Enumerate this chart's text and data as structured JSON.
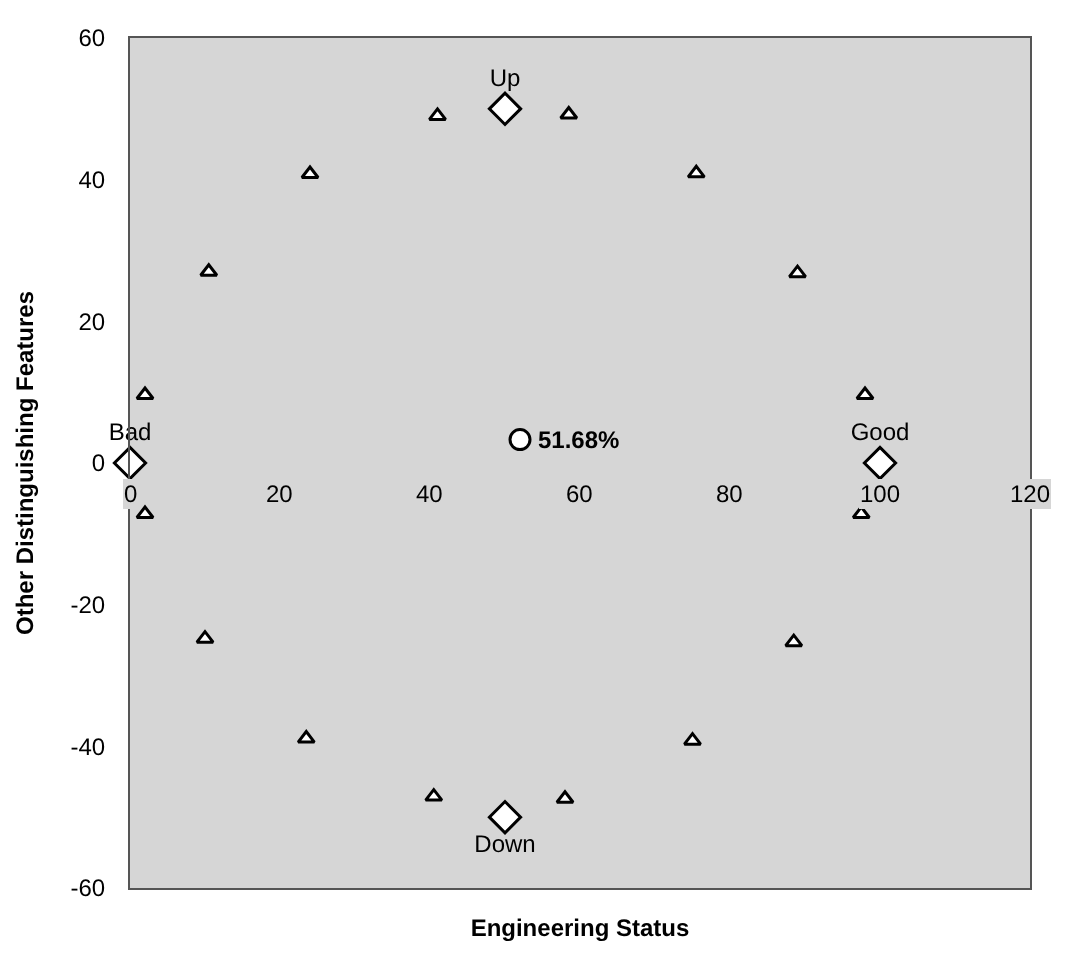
{
  "chart_data": {
    "type": "scatter",
    "xlabel": "Engineering Status",
    "ylabel": "Other Distinguishing Features",
    "xlim": [
      0,
      120
    ],
    "xticks": [
      0,
      20,
      40,
      60,
      80,
      100,
      120
    ],
    "ylim": [
      -60,
      60
    ],
    "yticks": [
      -60,
      -40,
      -20,
      0,
      20,
      40,
      60
    ],
    "grid": false,
    "annotations": [
      {
        "text": "51.68%",
        "x": 52,
        "y": 3.3
      }
    ],
    "series": [
      {
        "marker": "triangle",
        "color": "#000000",
        "x": [
          2,
          10.5,
          24,
          41,
          58.5,
          75.5,
          89,
          98,
          97.5,
          88.5,
          75,
          58,
          40.5,
          23.5,
          10,
          2
        ],
        "values": [
          9.6,
          27,
          40.8,
          49,
          49.2,
          40.9,
          26.8,
          9.6,
          -7.2,
          -25.3,
          -39.2,
          -47.4,
          -47.1,
          -38.9,
          -24.8,
          -7.2
        ]
      },
      {
        "marker": "diamond",
        "color": "#000000",
        "x": [
          0,
          50,
          100,
          50
        ],
        "values": [
          0,
          50,
          0,
          -50
        ],
        "value_labels": [
          "Bad",
          "Up",
          "Good",
          "Down"
        ]
      },
      {
        "marker": "circle",
        "color": "#000000",
        "x": [
          52
        ],
        "values": [
          3.3
        ]
      }
    ]
  }
}
